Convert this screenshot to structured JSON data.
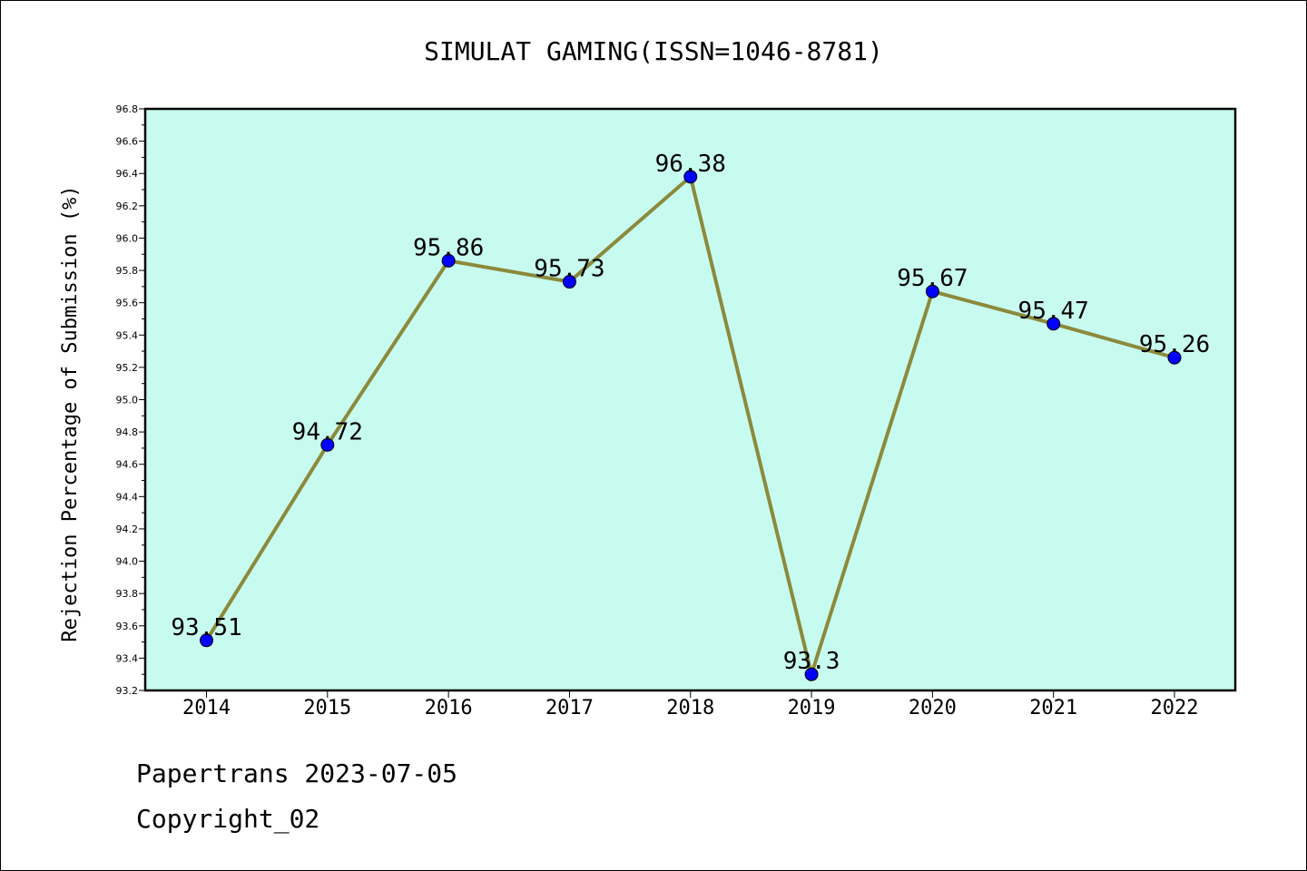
{
  "colors": {
    "plot_bg": "#c8fbef",
    "line": "#8b8a3c",
    "marker": "#0000ff",
    "axis": "#000000"
  },
  "chart_data": {
    "type": "line",
    "title": "SIMULAT GAMING(ISSN=1046-8781)",
    "xlabel": "",
    "ylabel": "Rejection Percentage of Submission (%)",
    "categories": [
      "2014",
      "2015",
      "2016",
      "2017",
      "2018",
      "2019",
      "2020",
      "2021",
      "2022"
    ],
    "series": [
      {
        "values": [
          93.51,
          94.72,
          95.86,
          95.73,
          96.38,
          93.3,
          95.67,
          95.47,
          95.26
        ]
      }
    ],
    "data_labels": [
      "93.51",
      "94.72",
      "95.86",
      "95.73",
      "96.38",
      "93.3",
      "95.67",
      "95.47",
      "95.26"
    ],
    "ylim": [
      93.2,
      96.8
    ],
    "yticks": [
      "93.2",
      "93.4",
      "93.6",
      "93.8",
      "94.0",
      "94.2",
      "94.4",
      "94.6",
      "94.8",
      "95.0",
      "95.2",
      "95.4",
      "95.6",
      "95.8",
      "96.0",
      "96.2",
      "96.4",
      "96.6",
      "96.8"
    ],
    "grid": false,
    "legend": "none"
  },
  "footer": {
    "source": "Papertrans 2023-07-05",
    "copyright": "Copyright_02"
  }
}
